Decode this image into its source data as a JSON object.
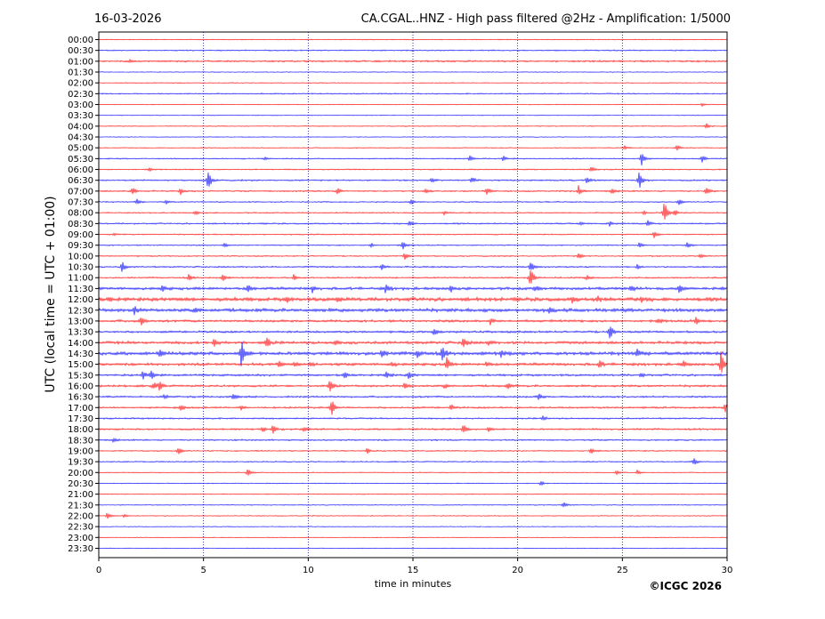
{
  "header": {
    "date": "16-03-2026",
    "title": "CA.CGAL..HNZ - High pass filtered @2Hz - Amplification: 1/5000"
  },
  "copyright": "©ICGC 2026",
  "colors": {
    "trace_a": "#ff0000",
    "trace_b": "#0000ff",
    "grid": "#000080"
  },
  "chart_data": {
    "type": "line",
    "title": "CA.CGAL..HNZ - High pass filtered @2Hz - Amplification: 1/5000",
    "xlabel": "time in minutes",
    "ylabel": "UTC (local time = UTC + 01:00)",
    "xlim": [
      0,
      30
    ],
    "x_ticks": [
      0,
      5,
      10,
      15,
      20,
      25,
      30
    ],
    "vertical_gridlines": [
      5,
      10,
      15,
      20,
      25
    ],
    "grid": "vertical dotted",
    "rows": [
      "00:00",
      "00:30",
      "01:00",
      "01:30",
      "02:00",
      "02:30",
      "03:00",
      "03:30",
      "04:00",
      "04:30",
      "05:00",
      "05:30",
      "06:00",
      "06:30",
      "07:00",
      "07:30",
      "08:00",
      "08:30",
      "09:00",
      "09:30",
      "10:00",
      "10:30",
      "11:00",
      "11:30",
      "12:00",
      "12:30",
      "13:00",
      "13:30",
      "14:00",
      "14:30",
      "15:00",
      "15:30",
      "16:00",
      "16:30",
      "17:00",
      "17:30",
      "18:00",
      "18:30",
      "19:00",
      "19:30",
      "20:00",
      "20:30",
      "21:00",
      "21:30",
      "22:00",
      "22:30",
      "23:00",
      "23:30"
    ],
    "row_colors": [
      "red",
      "blue"
    ],
    "noise_levels": [
      0.6,
      0.8,
      1.2,
      0.5,
      0.6,
      0.8,
      0.5,
      0.5,
      0.6,
      0.5,
      0.6,
      0.8,
      0.8,
      1.0,
      1.0,
      0.8,
      0.8,
      1.0,
      0.8,
      0.8,
      0.8,
      1.0,
      1.0,
      1.8,
      2.4,
      2.2,
      1.6,
      1.4,
      1.8,
      2.2,
      1.8,
      1.4,
      1.4,
      1.2,
      1.2,
      1.0,
      1.2,
      1.0,
      0.8,
      0.8,
      0.6,
      0.6,
      0.6,
      0.6,
      0.6,
      0.5,
      0.5,
      0.5
    ],
    "events": [
      {
        "row": "01:00",
        "t": 1.5,
        "amp": 1.5
      },
      {
        "row": "03:00",
        "t": 28.8,
        "amp": 2
      },
      {
        "row": "04:00",
        "t": 29.0,
        "amp": 4
      },
      {
        "row": "05:00",
        "t": 25.1,
        "amp": 3
      },
      {
        "row": "05:00",
        "t": 27.6,
        "amp": 4
      },
      {
        "row": "05:30",
        "t": 7.9,
        "amp": 2
      },
      {
        "row": "05:30",
        "t": 17.7,
        "amp": 4
      },
      {
        "row": "05:30",
        "t": 19.3,
        "amp": 4
      },
      {
        "row": "05:30",
        "t": 25.9,
        "amp": 9
      },
      {
        "row": "05:30",
        "t": 28.8,
        "amp": 5
      },
      {
        "row": "06:00",
        "t": 2.4,
        "amp": 3
      },
      {
        "row": "06:00",
        "t": 23.5,
        "amp": 4
      },
      {
        "row": "06:30",
        "t": 5.2,
        "amp": 13
      },
      {
        "row": "06:30",
        "t": 15.9,
        "amp": 3
      },
      {
        "row": "06:30",
        "t": 17.8,
        "amp": 4
      },
      {
        "row": "06:30",
        "t": 23.3,
        "amp": 5
      },
      {
        "row": "06:30",
        "t": 25.8,
        "amp": 11
      },
      {
        "row": "07:00",
        "t": 1.6,
        "amp": 5
      },
      {
        "row": "07:00",
        "t": 3.9,
        "amp": 4
      },
      {
        "row": "07:00",
        "t": 11.4,
        "amp": 4
      },
      {
        "row": "07:00",
        "t": 15.6,
        "amp": 4
      },
      {
        "row": "07:00",
        "t": 18.5,
        "amp": 6
      },
      {
        "row": "07:00",
        "t": 22.9,
        "amp": 7
      },
      {
        "row": "07:00",
        "t": 24.5,
        "amp": 4
      },
      {
        "row": "07:00",
        "t": 29.0,
        "amp": 5
      },
      {
        "row": "07:30",
        "t": 1.8,
        "amp": 4
      },
      {
        "row": "07:30",
        "t": 3.2,
        "amp": 3
      },
      {
        "row": "07:30",
        "t": 14.9,
        "amp": 4
      },
      {
        "row": "07:30",
        "t": 27.7,
        "amp": 4
      },
      {
        "row": "08:00",
        "t": 4.6,
        "amp": 3
      },
      {
        "row": "08:00",
        "t": 16.5,
        "amp": 3
      },
      {
        "row": "08:00",
        "t": 26.0,
        "amp": 3
      },
      {
        "row": "08:00",
        "t": 27.0,
        "amp": 16
      },
      {
        "row": "08:00",
        "t": 27.5,
        "amp": 4
      },
      {
        "row": "08:30",
        "t": 14.8,
        "amp": 3
      },
      {
        "row": "08:30",
        "t": 23.0,
        "amp": 3
      },
      {
        "row": "08:30",
        "t": 24.4,
        "amp": 3
      },
      {
        "row": "08:30",
        "t": 26.2,
        "amp": 4
      },
      {
        "row": "09:00",
        "t": 0.7,
        "amp": 2
      },
      {
        "row": "09:00",
        "t": 26.5,
        "amp": 5
      },
      {
        "row": "09:30",
        "t": 6.0,
        "amp": 3
      },
      {
        "row": "09:30",
        "t": 13.0,
        "amp": 3
      },
      {
        "row": "09:30",
        "t": 14.5,
        "amp": 7
      },
      {
        "row": "09:30",
        "t": 25.8,
        "amp": 4
      },
      {
        "row": "09:30",
        "t": 28.1,
        "amp": 4
      },
      {
        "row": "10:00",
        "t": 14.6,
        "amp": 5
      },
      {
        "row": "10:00",
        "t": 22.9,
        "amp": 5
      },
      {
        "row": "10:00",
        "t": 28.7,
        "amp": 4
      },
      {
        "row": "10:30",
        "t": 1.1,
        "amp": 7
      },
      {
        "row": "10:30",
        "t": 13.5,
        "amp": 4
      },
      {
        "row": "10:30",
        "t": 20.6,
        "amp": 8
      },
      {
        "row": "10:30",
        "t": 25.7,
        "amp": 3
      },
      {
        "row": "11:00",
        "t": 4.3,
        "amp": 4
      },
      {
        "row": "11:00",
        "t": 5.9,
        "amp": 5
      },
      {
        "row": "11:00",
        "t": 9.3,
        "amp": 4
      },
      {
        "row": "11:00",
        "t": 20.6,
        "amp": 14
      },
      {
        "row": "11:00",
        "t": 23.3,
        "amp": 4
      },
      {
        "row": "11:30",
        "t": 3.0,
        "amp": 4
      },
      {
        "row": "11:30",
        "t": 7.1,
        "amp": 5
      },
      {
        "row": "11:30",
        "t": 10.2,
        "amp": 4
      },
      {
        "row": "11:30",
        "t": 13.7,
        "amp": 6
      },
      {
        "row": "11:30",
        "t": 16.8,
        "amp": 4
      },
      {
        "row": "11:30",
        "t": 20.8,
        "amp": 4
      },
      {
        "row": "11:30",
        "t": 25.4,
        "amp": 4
      },
      {
        "row": "11:30",
        "t": 27.7,
        "amp": 5
      },
      {
        "row": "12:00",
        "t": 0.5,
        "amp": 3
      },
      {
        "row": "12:00",
        "t": 9.0,
        "amp": 3
      },
      {
        "row": "12:00",
        "t": 11.4,
        "amp": 3
      },
      {
        "row": "12:00",
        "t": 22.6,
        "amp": 4
      },
      {
        "row": "12:00",
        "t": 23.8,
        "amp": 4
      },
      {
        "row": "12:00",
        "t": 25.9,
        "amp": 4
      },
      {
        "row": "12:30",
        "t": 1.7,
        "amp": 5
      },
      {
        "row": "12:30",
        "t": 4.6,
        "amp": 3
      },
      {
        "row": "12:30",
        "t": 21.5,
        "amp": 3
      },
      {
        "row": "13:00",
        "t": 2.0,
        "amp": 6
      },
      {
        "row": "13:00",
        "t": 18.7,
        "amp": 4
      },
      {
        "row": "13:00",
        "t": 26.7,
        "amp": 4
      },
      {
        "row": "13:00",
        "t": 28.5,
        "amp": 4
      },
      {
        "row": "13:30",
        "t": 16.0,
        "amp": 5
      },
      {
        "row": "13:30",
        "t": 24.4,
        "amp": 9
      },
      {
        "row": "14:00",
        "t": 5.5,
        "amp": 5
      },
      {
        "row": "14:00",
        "t": 8.0,
        "amp": 8
      },
      {
        "row": "14:00",
        "t": 11.3,
        "amp": 3
      },
      {
        "row": "14:00",
        "t": 17.4,
        "amp": 8
      },
      {
        "row": "14:00",
        "t": 18.6,
        "amp": 3
      },
      {
        "row": "14:30",
        "t": 2.9,
        "amp": 4
      },
      {
        "row": "14:30",
        "t": 6.8,
        "amp": 18
      },
      {
        "row": "14:30",
        "t": 13.5,
        "amp": 4
      },
      {
        "row": "14:30",
        "t": 15.2,
        "amp": 5
      },
      {
        "row": "14:30",
        "t": 16.4,
        "amp": 9
      },
      {
        "row": "14:30",
        "t": 19.2,
        "amp": 4
      },
      {
        "row": "14:30",
        "t": 25.7,
        "amp": 5
      },
      {
        "row": "15:00",
        "t": 8.6,
        "amp": 4
      },
      {
        "row": "15:00",
        "t": 9.3,
        "amp": 3
      },
      {
        "row": "15:00",
        "t": 10.1,
        "amp": 3
      },
      {
        "row": "15:00",
        "t": 14.0,
        "amp": 3
      },
      {
        "row": "15:00",
        "t": 16.6,
        "amp": 8
      },
      {
        "row": "15:00",
        "t": 18.5,
        "amp": 3
      },
      {
        "row": "15:00",
        "t": 23.9,
        "amp": 5
      },
      {
        "row": "15:00",
        "t": 27.9,
        "amp": 4
      },
      {
        "row": "15:00",
        "t": 29.7,
        "amp": 14
      },
      {
        "row": "15:30",
        "t": 2.1,
        "amp": 5
      },
      {
        "row": "15:30",
        "t": 2.5,
        "amp": 5
      },
      {
        "row": "15:30",
        "t": 11.7,
        "amp": 4
      },
      {
        "row": "15:30",
        "t": 13.7,
        "amp": 5
      },
      {
        "row": "15:30",
        "t": 14.8,
        "amp": 5
      },
      {
        "row": "15:30",
        "t": 25.9,
        "amp": 3
      },
      {
        "row": "16:00",
        "t": 2.6,
        "amp": 5
      },
      {
        "row": "16:00",
        "t": 2.9,
        "amp": 5
      },
      {
        "row": "16:00",
        "t": 11.0,
        "amp": 8
      },
      {
        "row": "16:00",
        "t": 14.6,
        "amp": 5
      },
      {
        "row": "16:00",
        "t": 16.5,
        "amp": 3
      },
      {
        "row": "16:00",
        "t": 19.5,
        "amp": 4
      },
      {
        "row": "16:30",
        "t": 3.1,
        "amp": 3
      },
      {
        "row": "16:30",
        "t": 6.4,
        "amp": 5
      },
      {
        "row": "16:30",
        "t": 21.0,
        "amp": 5
      },
      {
        "row": "17:00",
        "t": 3.9,
        "amp": 4
      },
      {
        "row": "17:00",
        "t": 6.8,
        "amp": 3
      },
      {
        "row": "17:00",
        "t": 11.1,
        "amp": 11
      },
      {
        "row": "17:00",
        "t": 16.8,
        "amp": 4
      },
      {
        "row": "17:00",
        "t": 29.9,
        "amp": 6
      },
      {
        "row": "17:30",
        "t": 21.2,
        "amp": 3
      },
      {
        "row": "18:00",
        "t": 7.8,
        "amp": 3
      },
      {
        "row": "18:00",
        "t": 8.3,
        "amp": 6
      },
      {
        "row": "18:00",
        "t": 9.8,
        "amp": 3
      },
      {
        "row": "18:00",
        "t": 17.4,
        "amp": 6
      },
      {
        "row": "18:00",
        "t": 18.6,
        "amp": 3
      },
      {
        "row": "18:30",
        "t": 0.7,
        "amp": 3
      },
      {
        "row": "19:00",
        "t": 3.8,
        "amp": 5
      },
      {
        "row": "19:00",
        "t": 12.8,
        "amp": 4
      },
      {
        "row": "19:00",
        "t": 23.5,
        "amp": 4
      },
      {
        "row": "19:30",
        "t": 28.4,
        "amp": 5
      },
      {
        "row": "20:00",
        "t": 7.1,
        "amp": 5
      },
      {
        "row": "20:00",
        "t": 24.7,
        "amp": 3
      },
      {
        "row": "20:00",
        "t": 25.7,
        "amp": 3
      },
      {
        "row": "20:30",
        "t": 21.1,
        "amp": 3
      },
      {
        "row": "21:30",
        "t": 22.2,
        "amp": 4
      },
      {
        "row": "22:00",
        "t": 0.4,
        "amp": 5
      },
      {
        "row": "22:00",
        "t": 1.2,
        "amp": 2
      }
    ]
  }
}
